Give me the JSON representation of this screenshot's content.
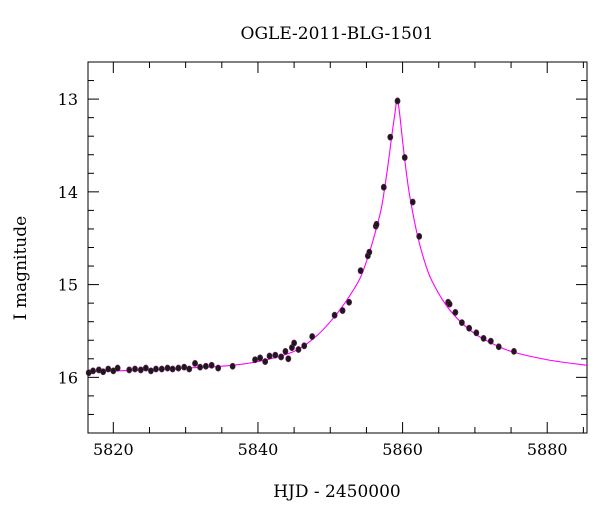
{
  "chart_data": {
    "type": "scatter",
    "title": "OGLE-2011-BLG-1501",
    "xlabel": "HJD - 2450000",
    "ylabel": "I magnitude",
    "xlim": [
      5816.5,
      5885.5
    ],
    "ylim": [
      16.6,
      12.6
    ],
    "y_inverted": true,
    "grid": false,
    "x_ticks": [
      5820,
      5840,
      5860,
      5880
    ],
    "x_tick_labels": [
      "5820",
      "5840",
      "5860",
      "5880"
    ],
    "y_ticks": [
      13,
      14,
      15,
      16
    ],
    "y_tick_labels": [
      "13",
      "14",
      "15",
      "16"
    ],
    "colors": {
      "model_curve": "#ff00ff",
      "points": "#1a1a1a",
      "axes": "#000000"
    },
    "model": {
      "name": "",
      "x": [
        5816.5,
        5820,
        5825,
        5830,
        5835,
        5840,
        5845,
        5848,
        5850,
        5852,
        5854,
        5855,
        5856,
        5857,
        5857.5,
        5858,
        5858.5,
        5859,
        5859.2,
        5859.5,
        5860,
        5860.5,
        5861,
        5862,
        5863,
        5864,
        5866,
        5868,
        5870,
        5872,
        5875,
        5880,
        5885.5
      ],
      "y": [
        15.94,
        15.93,
        15.92,
        15.9,
        15.88,
        15.83,
        15.72,
        15.56,
        15.4,
        15.2,
        14.95,
        14.75,
        14.5,
        14.2,
        13.97,
        13.7,
        13.4,
        13.12,
        13.02,
        13.1,
        13.45,
        13.78,
        14.05,
        14.45,
        14.74,
        14.95,
        15.22,
        15.4,
        15.53,
        15.62,
        15.72,
        15.81,
        15.87
      ]
    },
    "series": [
      {
        "name": "",
        "x": [
          5816.6,
          5817.2,
          5818.0,
          5818.6,
          5819.3,
          5820.0,
          5820.6,
          5822.2,
          5823.0,
          5823.8,
          5824.5,
          5825.2,
          5825.9,
          5826.7,
          5827.5,
          5828.2,
          5829.0,
          5829.8,
          5830.5,
          5831.3,
          5832.0,
          5832.8,
          5833.6,
          5834.5,
          5836.5,
          5839.6,
          5840.3,
          5841.0,
          5841.6,
          5842.4,
          5843.2,
          5843.8,
          5844.2,
          5844.7,
          5845.0,
          5845.6,
          5846.4,
          5847.5,
          5850.6,
          5851.7,
          5852.6,
          5854.2,
          5855.2,
          5855.4,
          5856.3,
          5856.4,
          5857.4,
          5858.3,
          5859.3,
          5860.3,
          5861.4,
          5862.3,
          5866.3,
          5866.5,
          5867.3,
          5868.2,
          5869.2,
          5870.2,
          5871.2,
          5872.2,
          5873.3,
          5875.4
        ],
        "y": [
          15.95,
          15.93,
          15.92,
          15.94,
          15.91,
          15.93,
          15.9,
          15.92,
          15.91,
          15.92,
          15.9,
          15.93,
          15.91,
          15.91,
          15.9,
          15.91,
          15.9,
          15.89,
          15.91,
          15.85,
          15.89,
          15.88,
          15.87,
          15.9,
          15.88,
          15.81,
          15.79,
          15.83,
          15.77,
          15.76,
          15.78,
          15.72,
          15.8,
          15.68,
          15.63,
          15.7,
          15.66,
          15.56,
          15.33,
          15.28,
          15.19,
          14.85,
          14.69,
          14.65,
          14.37,
          14.35,
          13.95,
          13.41,
          13.02,
          13.63,
          14.11,
          14.48,
          15.19,
          15.21,
          15.3,
          15.41,
          15.47,
          15.52,
          15.58,
          15.61,
          15.67,
          15.72
        ]
      }
    ]
  }
}
